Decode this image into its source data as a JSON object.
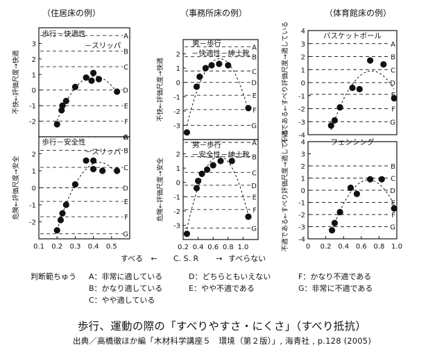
{
  "panel_titles": [
    "（住居床の例）",
    "（事務所床の例）",
    "（体育館床の例）"
  ],
  "grade_letters": [
    "A",
    "B",
    "C",
    "D",
    "E",
    "F",
    "G"
  ],
  "axis": {
    "xlabel_left": "すべる",
    "xlabel_center": "C. S. R",
    "xlabel_right": "すべらない",
    "arrow_left": "←",
    "arrow_right": "→"
  },
  "legend": {
    "title": "判断範ちゅう",
    "items": [
      "A：非常に適している",
      "B：かなり適している",
      "C：やや適している",
      "D：どちらともいえない",
      "E：やや不適である",
      "F：かなり不適である",
      "G：非常に不適である"
    ]
  },
  "caption": {
    "title": "歩行、運動の際の「すべりやすさ・にくさ」（すべり抵抗）",
    "source": "出典／高橋徹ほか編「木材科学講座５　環境（第２版）」, 海青社 , p.128 (2005)"
  },
  "chart_data": [
    {
      "type": "scatter",
      "title": "（住居床の例）",
      "subtitle": "歩行－快適性",
      "annotation": "スリッパ",
      "ylabel": "不快←評価尺度→快適",
      "xlim": [
        0.1,
        0.6
      ],
      "ylim": [
        -3,
        4
      ],
      "yticks": [
        -2,
        -1,
        0,
        1,
        2,
        3
      ],
      "xticks": [],
      "grades": {
        "A": 3.5,
        "B": 2.5,
        "C": 1.5,
        "D": 0.0,
        "E": -1.0,
        "F": -2.0,
        "G": -3.0
      },
      "x": [
        0.2,
        0.225,
        0.23,
        0.25,
        0.3,
        0.36,
        0.39,
        0.4,
        0.43,
        0.53
      ],
      "y": [
        -2.2,
        -1.3,
        -1.0,
        -0.7,
        0.2,
        0.8,
        0.6,
        1.1,
        0.7,
        -0.1
      ]
    },
    {
      "type": "scatter",
      "subtitle": "歩行－安全性",
      "annotation": "スリッパ",
      "ylabel": "危険←評価尺度→安全",
      "xlim": [
        0.1,
        0.6
      ],
      "ylim": [
        -3,
        3
      ],
      "yticks": [
        -2,
        -1,
        0,
        1,
        2
      ],
      "xticks": [
        0.1,
        0.2,
        0.3,
        0.4,
        0.5
      ],
      "grades": {
        "A": 3.0,
        "B": 2.2,
        "C": 1.2,
        "D": 0.0,
        "E": -0.8,
        "F": -1.7,
        "G": -2.7
      },
      "x": [
        0.2,
        0.22,
        0.23,
        0.25,
        0.3,
        0.36,
        0.4,
        0.4,
        0.45,
        0.53
      ],
      "y": [
        -2.5,
        -1.9,
        -1.5,
        -1.0,
        0.2,
        1.6,
        1.6,
        1.1,
        1.0,
        1.0
      ]
    },
    {
      "type": "scatter",
      "title": "（事務所床の例）",
      "subtitle": "男－歩行",
      "annotation": "快適性－紳士靴",
      "ylabel": "不快←評価尺度→快適",
      "xlim": [
        0.2,
        1.2
      ],
      "ylim": [
        -4,
        3
      ],
      "yticks": [
        -3,
        -2,
        -1,
        0,
        1,
        2
      ],
      "xticks": [],
      "grades": {
        "A": 2.5,
        "B": 1.8,
        "C": 0.8,
        "D": 0.0,
        "E": -0.9,
        "F": -1.9,
        "G": -3.0
      },
      "x": [
        0.25,
        0.38,
        0.42,
        0.5,
        0.58,
        0.68,
        0.8,
        1.07
      ],
      "y": [
        -3.5,
        -0.3,
        0.4,
        1.0,
        1.2,
        1.3,
        1.2,
        -1.8
      ]
    },
    {
      "type": "scatter",
      "subtitle": "男－歩行",
      "annotation": "安全性－紳士靴",
      "ylabel": "危険←評価尺度→安全",
      "xlim": [
        0.2,
        1.2
      ],
      "ylim": [
        -4,
        3
      ],
      "yticks": [
        -3,
        -2,
        -1,
        0,
        1,
        2
      ],
      "xticks": [
        0.2,
        0.4,
        0.6,
        0.8,
        1.0
      ],
      "grades": {
        "A": 2.8,
        "B": 1.8,
        "C": 0.7,
        "D": -0.2,
        "E": -1.0,
        "F": -1.9,
        "G": -3.2
      },
      "x": [
        0.25,
        0.38,
        0.4,
        0.45,
        0.52,
        0.6,
        0.7,
        0.85,
        1.07
      ],
      "y": [
        -3.6,
        -0.4,
        0.1,
        0.6,
        0.9,
        1.2,
        1.5,
        1.5,
        -2.4
      ]
    },
    {
      "type": "scatter",
      "title": "（体育館床の例）",
      "subtitle": "バスケットボール",
      "ylabel": "不適である←すべり評価尺度→適している",
      "xlim": [
        0,
        1.0
      ],
      "ylim": [
        -4,
        4
      ],
      "yticks": [
        -4,
        -3,
        -2,
        -1,
        0,
        1,
        2,
        3,
        4
      ],
      "xticks": [],
      "grades": {
        "A": 3.0,
        "B": 2.0,
        "C": 1.0,
        "D": 0.0,
        "E": -0.9,
        "F": -2.0,
        "G": -3.0
      },
      "x": [
        0.26,
        0.3,
        0.36,
        0.5,
        0.58,
        0.7,
        0.85,
        0.97
      ],
      "y": [
        -3.3,
        -2.9,
        -1.9,
        -0.4,
        -0.5,
        1.7,
        1.4,
        -1.2
      ]
    },
    {
      "type": "scatter",
      "subtitle": "フェンシング",
      "ylabel": "不適である←すべり評価尺度→適している",
      "xlim": [
        0,
        1.0
      ],
      "ylim": [
        -4,
        4
      ],
      "yticks": [
        -4,
        -3,
        -2,
        -1,
        0,
        1,
        2,
        3,
        4
      ],
      "xticks": [
        0,
        0.2,
        0.4,
        0.6,
        0.8,
        1.0
      ],
      "grades": {
        "B": 2.0,
        "C": 1.0,
        "D": 0.0,
        "E": -1.0,
        "F": -2.0,
        "G": -3.0
      },
      "x": [
        0.27,
        0.3,
        0.36,
        0.48,
        0.55,
        0.7,
        0.83,
        0.97
      ],
      "y": [
        -3.3,
        -2.7,
        -1.8,
        0.2,
        -0.3,
        0.9,
        0.9,
        -1.5
      ]
    }
  ]
}
